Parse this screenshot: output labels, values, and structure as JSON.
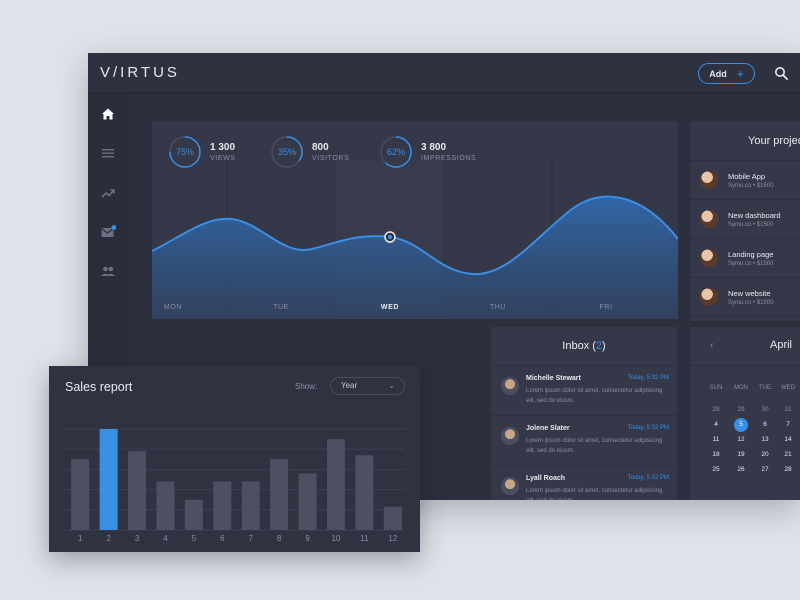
{
  "brand": {
    "logo": "V/IRTUS"
  },
  "topbar": {
    "add_label": "Add",
    "add_icon": "+"
  },
  "colors": {
    "accent": "#3a8ee6",
    "bg": "#2c2f3d",
    "card": "#353848",
    "bar": "#4d5060"
  },
  "sidebar": {
    "items": [
      "home-icon",
      "menu-icon",
      "trending-icon",
      "mail-icon",
      "users-icon"
    ]
  },
  "stats": [
    {
      "percent": "75%",
      "fraction": 0.75,
      "value": "1 300",
      "label": "VIEWS"
    },
    {
      "percent": "35%",
      "fraction": 0.35,
      "value": "800",
      "label": "VISITORS"
    },
    {
      "percent": "62%",
      "fraction": 0.62,
      "value": "3 800",
      "label": "IMPRESSIONS"
    }
  ],
  "days": [
    "MON",
    "TUE",
    "WED",
    "THU",
    "FRI"
  ],
  "active_day": "WED",
  "projects": {
    "title": "Your projects",
    "items": [
      {
        "name": "Mobile App",
        "sub": "Symu.co  •  $1500"
      },
      {
        "name": "New dashboard",
        "sub": "Symu.co  •  $1500"
      },
      {
        "name": "Landing page",
        "sub": "Symu.co  •  $1500"
      },
      {
        "name": "New website",
        "sub": "Symu.co  •  $1500"
      }
    ]
  },
  "inbox": {
    "title": "Inbox (",
    "count": "2",
    "title_end": ")",
    "messages": [
      {
        "name": "Michelle Stewart",
        "time": "Today, 5:32 PM",
        "text": "Lorem ipsum dolor sit amet, consectetur adipisicing elit, sed do eiusm."
      },
      {
        "name": "Jolene Slater",
        "time": "Today, 5:32 PM",
        "text": "Lorem ipsum dolor sit amet, consectetur adipisicing elit, sed do eiusm."
      },
      {
        "name": "Lyall Roach",
        "time": "Today, 5:32 PM",
        "text": "Lorem ipsum dolor sit amet, consectetur adipisicing elit, sed do eiusm."
      }
    ]
  },
  "calendar": {
    "month": "April",
    "prev": "‹",
    "dow": [
      "SUN",
      "MON",
      "TUE",
      "WED"
    ],
    "weeks": [
      [
        "28",
        "29",
        "30",
        "31"
      ],
      [
        "4",
        "5",
        "6",
        "7"
      ],
      [
        "11",
        "12",
        "13",
        "14"
      ],
      [
        "18",
        "19",
        "20",
        "21"
      ],
      [
        "25",
        "26",
        "27",
        "28"
      ]
    ],
    "today": "5"
  },
  "sales": {
    "title": "Sales report",
    "show_label": "Show:",
    "select_value": "Year"
  },
  "chart_data": {
    "type": "bar",
    "categories": [
      "1",
      "2",
      "3",
      "4",
      "5",
      "6",
      "7",
      "8",
      "9",
      "10",
      "11",
      "12"
    ],
    "values": [
      70,
      100,
      78,
      48,
      30,
      48,
      48,
      70,
      56,
      90,
      74,
      23
    ],
    "highlight_index": 1,
    "title": "Sales report",
    "ylim": [
      0,
      100
    ],
    "grid": true
  }
}
